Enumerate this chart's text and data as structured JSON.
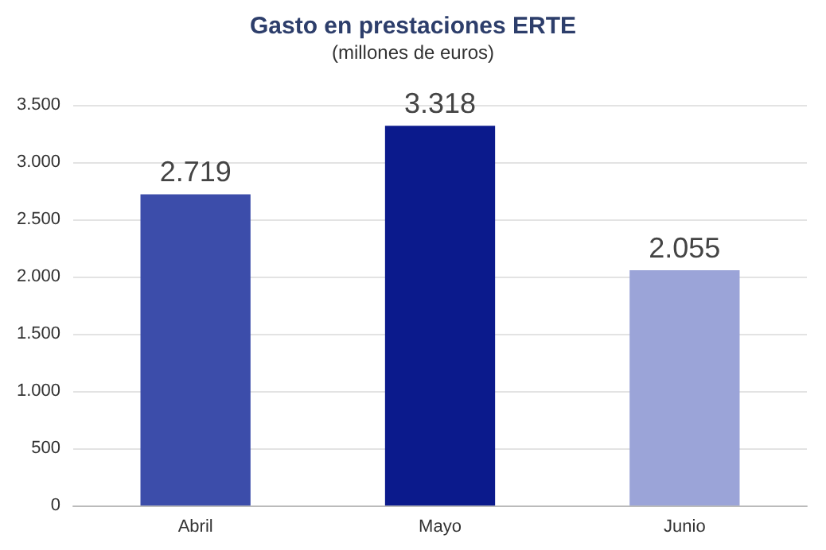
{
  "chart_data": {
    "type": "bar",
    "title": "Gasto en prestaciones ERTE",
    "subtitle": "(millones de euros)",
    "categories": [
      "Abril",
      "Mayo",
      "Junio"
    ],
    "values": [
      2719,
      3318,
      2055
    ],
    "colors": [
      "#3c4daa",
      "#0b1a8c",
      "#9ba4d8"
    ],
    "value_labels": [
      "2.719",
      "3.318",
      "2.055"
    ],
    "ylim": [
      0,
      3500
    ],
    "yticks": [
      0,
      500,
      {
        "value": 1000,
        "label": "1.000"
      },
      {
        "value": 1500,
        "label": "1.500"
      },
      {
        "value": 2000,
        "label": "2.000"
      },
      {
        "value": 2500,
        "label": "2.500"
      },
      {
        "value": 3000,
        "label": "3.000"
      },
      {
        "value": 3500,
        "label": "3.500"
      }
    ],
    "grid": true
  }
}
